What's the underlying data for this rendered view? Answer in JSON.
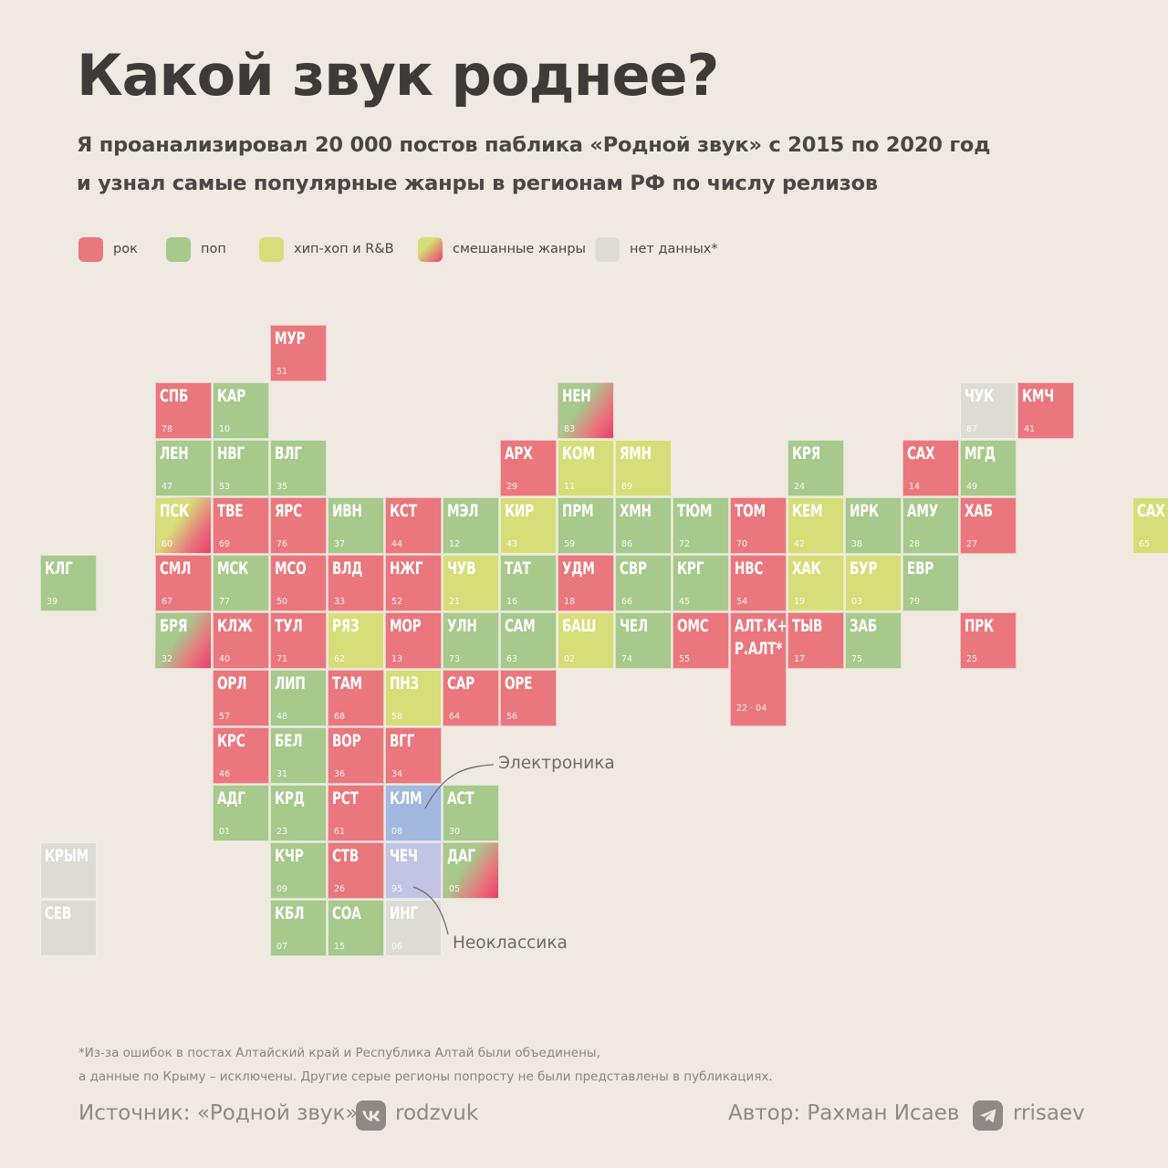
{
  "title": "Какой звук роднее?",
  "subtitle": {
    "line1": "Я проанализировал 20 000 постов паблика «Родной звук» с 2015 по 2020 год",
    "line2": "и узнал самые популярные жанры в регионам РФ по числу релизов"
  },
  "colors": {
    "rock": "#e9777d",
    "pop": "#a7c98c",
    "hiphop": "#d6dd79",
    "nodata": "#dedbd3",
    "electronic": "#a2b8df",
    "neoclassic": "#c2c4e3",
    "mixed_pink": "#e83c6c"
  },
  "legend": [
    {
      "label": "рок",
      "genre": "rock"
    },
    {
      "label": "поп",
      "genre": "pop"
    },
    {
      "label": "хип-хоп и R&B",
      "genre": "hiphop"
    },
    {
      "label": "смешанные жанры",
      "genre": "mixed"
    },
    {
      "label": "нет данных*",
      "genre": "nodata"
    }
  ],
  "annotations": {
    "electronic": "Электроника",
    "neoclassic": "Неоклассика"
  },
  "chart_data": {
    "type": "tile-map",
    "tiles": [
      {
        "code": "МУР",
        "num": "51",
        "col": 4,
        "row": 0,
        "genre": "rock"
      },
      {
        "code": "СПБ",
        "num": "78",
        "col": 2,
        "row": 1,
        "genre": "rock"
      },
      {
        "code": "КАР",
        "num": "10",
        "col": 3,
        "row": 1,
        "genre": "pop"
      },
      {
        "code": "НЕН",
        "num": "83",
        "col": 9,
        "row": 1,
        "genre": "mixed",
        "base": "pop"
      },
      {
        "code": "ЧУК",
        "num": "87",
        "col": 16,
        "row": 1,
        "genre": "nodata"
      },
      {
        "code": "КМЧ",
        "num": "41",
        "col": 17,
        "row": 1,
        "genre": "rock"
      },
      {
        "code": "ЛЕН",
        "num": "47",
        "col": 2,
        "row": 2,
        "genre": "pop"
      },
      {
        "code": "НВГ",
        "num": "53",
        "col": 3,
        "row": 2,
        "genre": "pop"
      },
      {
        "code": "ВЛГ",
        "num": "35",
        "col": 4,
        "row": 2,
        "genre": "pop"
      },
      {
        "code": "АРХ",
        "num": "29",
        "col": 8,
        "row": 2,
        "genre": "rock"
      },
      {
        "code": "КОМ",
        "num": "11",
        "col": 9,
        "row": 2,
        "genre": "hiphop"
      },
      {
        "code": "ЯМН",
        "num": "89",
        "col": 10,
        "row": 2,
        "genre": "hiphop"
      },
      {
        "code": "КРЯ",
        "num": "24",
        "col": 13,
        "row": 2,
        "genre": "pop"
      },
      {
        "code": "САХ",
        "num": "14",
        "col": 15,
        "row": 2,
        "genre": "rock"
      },
      {
        "code": "МГД",
        "num": "49",
        "col": 16,
        "row": 2,
        "genre": "pop"
      },
      {
        "code": "ПСК",
        "num": "60",
        "col": 2,
        "row": 3,
        "genre": "mixed",
        "base": "hiphop"
      },
      {
        "code": "ТВЕ",
        "num": "69",
        "col": 3,
        "row": 3,
        "genre": "rock"
      },
      {
        "code": "ЯРС",
        "num": "76",
        "col": 4,
        "row": 3,
        "genre": "rock"
      },
      {
        "code": "ИВН",
        "num": "37",
        "col": 5,
        "row": 3,
        "genre": "pop"
      },
      {
        "code": "КСТ",
        "num": "44",
        "col": 6,
        "row": 3,
        "genre": "rock"
      },
      {
        "code": "МЭЛ",
        "num": "12",
        "col": 7,
        "row": 3,
        "genre": "pop"
      },
      {
        "code": "КИР",
        "num": "43",
        "col": 8,
        "row": 3,
        "genre": "hiphop"
      },
      {
        "code": "ПРМ",
        "num": "59",
        "col": 9,
        "row": 3,
        "genre": "pop"
      },
      {
        "code": "ХМН",
        "num": "86",
        "col": 10,
        "row": 3,
        "genre": "pop"
      },
      {
        "code": "ТЮМ",
        "num": "72",
        "col": 11,
        "row": 3,
        "genre": "pop"
      },
      {
        "code": "ТОМ",
        "num": "70",
        "col": 12,
        "row": 3,
        "genre": "rock"
      },
      {
        "code": "КЕМ",
        "num": "42",
        "col": 13,
        "row": 3,
        "genre": "hiphop"
      },
      {
        "code": "ИРК",
        "num": "38",
        "col": 14,
        "row": 3,
        "genre": "pop"
      },
      {
        "code": "АМУ",
        "num": "28",
        "col": 15,
        "row": 3,
        "genre": "pop"
      },
      {
        "code": "ХАБ",
        "num": "27",
        "col": 16,
        "row": 3,
        "genre": "rock"
      },
      {
        "code": "САХ",
        "num": "65",
        "col": 19,
        "row": 3,
        "genre": "hiphop"
      },
      {
        "code": "КЛГ",
        "num": "39",
        "col": 0,
        "row": 4,
        "genre": "pop"
      },
      {
        "code": "СМЛ",
        "num": "67",
        "col": 2,
        "row": 4,
        "genre": "rock"
      },
      {
        "code": "МСК",
        "num": "77",
        "col": 3,
        "row": 4,
        "genre": "pop"
      },
      {
        "code": "МСО",
        "num": "50",
        "col": 4,
        "row": 4,
        "genre": "rock"
      },
      {
        "code": "ВЛД",
        "num": "33",
        "col": 5,
        "row": 4,
        "genre": "rock"
      },
      {
        "code": "НЖГ",
        "num": "52",
        "col": 6,
        "row": 4,
        "genre": "rock"
      },
      {
        "code": "ЧУВ",
        "num": "21",
        "col": 7,
        "row": 4,
        "genre": "hiphop"
      },
      {
        "code": "ТАТ",
        "num": "16",
        "col": 8,
        "row": 4,
        "genre": "pop"
      },
      {
        "code": "УДМ",
        "num": "18",
        "col": 9,
        "row": 4,
        "genre": "rock"
      },
      {
        "code": "СВР",
        "num": "66",
        "col": 10,
        "row": 4,
        "genre": "pop"
      },
      {
        "code": "КРГ",
        "num": "45",
        "col": 11,
        "row": 4,
        "genre": "pop"
      },
      {
        "code": "НВС",
        "num": "54",
        "col": 12,
        "row": 4,
        "genre": "rock"
      },
      {
        "code": "ХАК",
        "num": "19",
        "col": 13,
        "row": 4,
        "genre": "hiphop"
      },
      {
        "code": "БУР",
        "num": "03",
        "col": 14,
        "row": 4,
        "genre": "hiphop"
      },
      {
        "code": "ЕВР",
        "num": "79",
        "col": 15,
        "row": 4,
        "genre": "pop"
      },
      {
        "code": "БРЯ",
        "num": "32",
        "col": 2,
        "row": 5,
        "genre": "mixed",
        "base": "pop"
      },
      {
        "code": "КЛЖ",
        "num": "40",
        "col": 3,
        "row": 5,
        "genre": "rock"
      },
      {
        "code": "ТУЛ",
        "num": "71",
        "col": 4,
        "row": 5,
        "genre": "rock"
      },
      {
        "code": "РЯЗ",
        "num": "62",
        "col": 5,
        "row": 5,
        "genre": "hiphop"
      },
      {
        "code": "МОР",
        "num": "13",
        "col": 6,
        "row": 5,
        "genre": "rock"
      },
      {
        "code": "УЛН",
        "num": "73",
        "col": 7,
        "row": 5,
        "genre": "pop"
      },
      {
        "code": "САМ",
        "num": "63",
        "col": 8,
        "row": 5,
        "genre": "pop"
      },
      {
        "code": "БАШ",
        "num": "02",
        "col": 9,
        "row": 5,
        "genre": "hiphop"
      },
      {
        "code": "ЧЕЛ",
        "num": "74",
        "col": 10,
        "row": 5,
        "genre": "pop"
      },
      {
        "code": "ОМС",
        "num": "55",
        "col": 11,
        "row": 5,
        "genre": "rock"
      },
      {
        "code": "АЛТ.К+\nР.АЛТ*",
        "num": "22 · 04",
        "col": 12,
        "row": 5,
        "genre": "rock",
        "rowspan": 2
      },
      {
        "code": "ТЫВ",
        "num": "17",
        "col": 13,
        "row": 5,
        "genre": "rock"
      },
      {
        "code": "ЗАБ",
        "num": "75",
        "col": 14,
        "row": 5,
        "genre": "pop"
      },
      {
        "code": "ПРК",
        "num": "25",
        "col": 16,
        "row": 5,
        "genre": "rock"
      },
      {
        "code": "ОРЛ",
        "num": "57",
        "col": 3,
        "row": 6,
        "genre": "rock"
      },
      {
        "code": "ЛИП",
        "num": "48",
        "col": 4,
        "row": 6,
        "genre": "pop"
      },
      {
        "code": "ТАМ",
        "num": "68",
        "col": 5,
        "row": 6,
        "genre": "rock"
      },
      {
        "code": "ПНЗ",
        "num": "58",
        "col": 6,
        "row": 6,
        "genre": "hiphop"
      },
      {
        "code": "САР",
        "num": "64",
        "col": 7,
        "row": 6,
        "genre": "rock"
      },
      {
        "code": "ОРЕ",
        "num": "56",
        "col": 8,
        "row": 6,
        "genre": "rock"
      },
      {
        "code": "КРС",
        "num": "46",
        "col": 3,
        "row": 7,
        "genre": "rock"
      },
      {
        "code": "БЕЛ",
        "num": "31",
        "col": 4,
        "row": 7,
        "genre": "pop"
      },
      {
        "code": "ВОР",
        "num": "36",
        "col": 5,
        "row": 7,
        "genre": "rock"
      },
      {
        "code": "ВГГ",
        "num": "34",
        "col": 6,
        "row": 7,
        "genre": "rock"
      },
      {
        "code": "АДГ",
        "num": "01",
        "col": 3,
        "row": 8,
        "genre": "pop"
      },
      {
        "code": "КРД",
        "num": "23",
        "col": 4,
        "row": 8,
        "genre": "pop"
      },
      {
        "code": "РСТ",
        "num": "61",
        "col": 5,
        "row": 8,
        "genre": "rock"
      },
      {
        "code": "КЛМ",
        "num": "08",
        "col": 6,
        "row": 8,
        "genre": "electronic"
      },
      {
        "code": "АСТ",
        "num": "30",
        "col": 7,
        "row": 8,
        "genre": "pop"
      },
      {
        "code": "КРЫМ",
        "num": "",
        "col": 0,
        "row": 9,
        "genre": "nodata"
      },
      {
        "code": "КЧР",
        "num": "09",
        "col": 4,
        "row": 9,
        "genre": "pop"
      },
      {
        "code": "СТВ",
        "num": "26",
        "col": 5,
        "row": 9,
        "genre": "rock"
      },
      {
        "code": "ЧЕЧ",
        "num": "95",
        "col": 6,
        "row": 9,
        "genre": "neoclassic"
      },
      {
        "code": "ДАГ",
        "num": "05",
        "col": 7,
        "row": 9,
        "genre": "mixed",
        "base": "pop"
      },
      {
        "code": "СЕВ",
        "num": "",
        "col": 0,
        "row": 10,
        "genre": "nodata"
      },
      {
        "code": "КБЛ",
        "num": "07",
        "col": 4,
        "row": 10,
        "genre": "pop"
      },
      {
        "code": "СОА",
        "num": "15",
        "col": 5,
        "row": 10,
        "genre": "pop"
      },
      {
        "code": "ИНГ",
        "num": "06",
        "col": 6,
        "row": 10,
        "genre": "nodata"
      }
    ]
  },
  "footnote": {
    "line1": "*Из-за ошибок в постах Алтайский край и Республика Алтай были объединены,",
    "line2": "а данные по Крыму – исключены. Другие серые регионы попросту не были представлены в публикациях."
  },
  "footer": {
    "source_label": "Источник: «Родной звук»",
    "source_icon": "vk-icon",
    "source_handle": "rodzvuk",
    "author_label": "Автор: Рахман Исаев",
    "author_icon": "telegram-icon",
    "author_handle": "rrisaev"
  }
}
